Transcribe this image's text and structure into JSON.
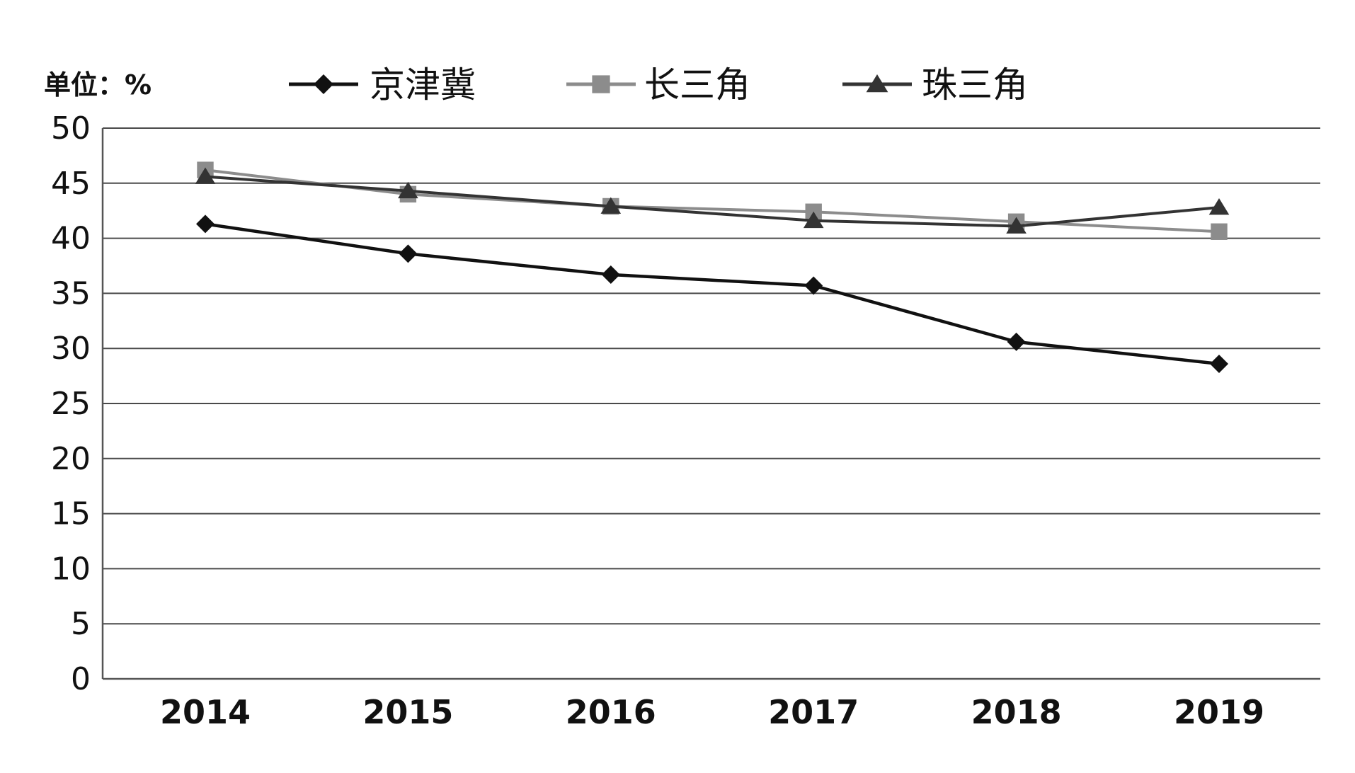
{
  "chart_data": {
    "type": "line",
    "unit_label": "单位：%",
    "categories": [
      "2014",
      "2015",
      "2016",
      "2017",
      "2018",
      "2019"
    ],
    "ylim": [
      0,
      50
    ],
    "yticks": [
      "0",
      "5",
      "10",
      "15",
      "20",
      "25",
      "30",
      "35",
      "40",
      "45",
      "50"
    ],
    "grid": true,
    "legend_position": "top",
    "series": [
      {
        "name": "京津冀",
        "marker": "diamond",
        "color": "#111111",
        "values": [
          41.3,
          38.6,
          36.7,
          35.7,
          30.6,
          28.6
        ]
      },
      {
        "name": "长三角",
        "marker": "square",
        "color": "#8c8c8c",
        "values": [
          46.2,
          44.0,
          42.9,
          42.4,
          41.5,
          40.6
        ]
      },
      {
        "name": "珠三角",
        "marker": "triangle",
        "color": "#333333",
        "values": [
          45.6,
          44.3,
          42.9,
          41.6,
          41.1,
          42.8
        ]
      }
    ]
  }
}
